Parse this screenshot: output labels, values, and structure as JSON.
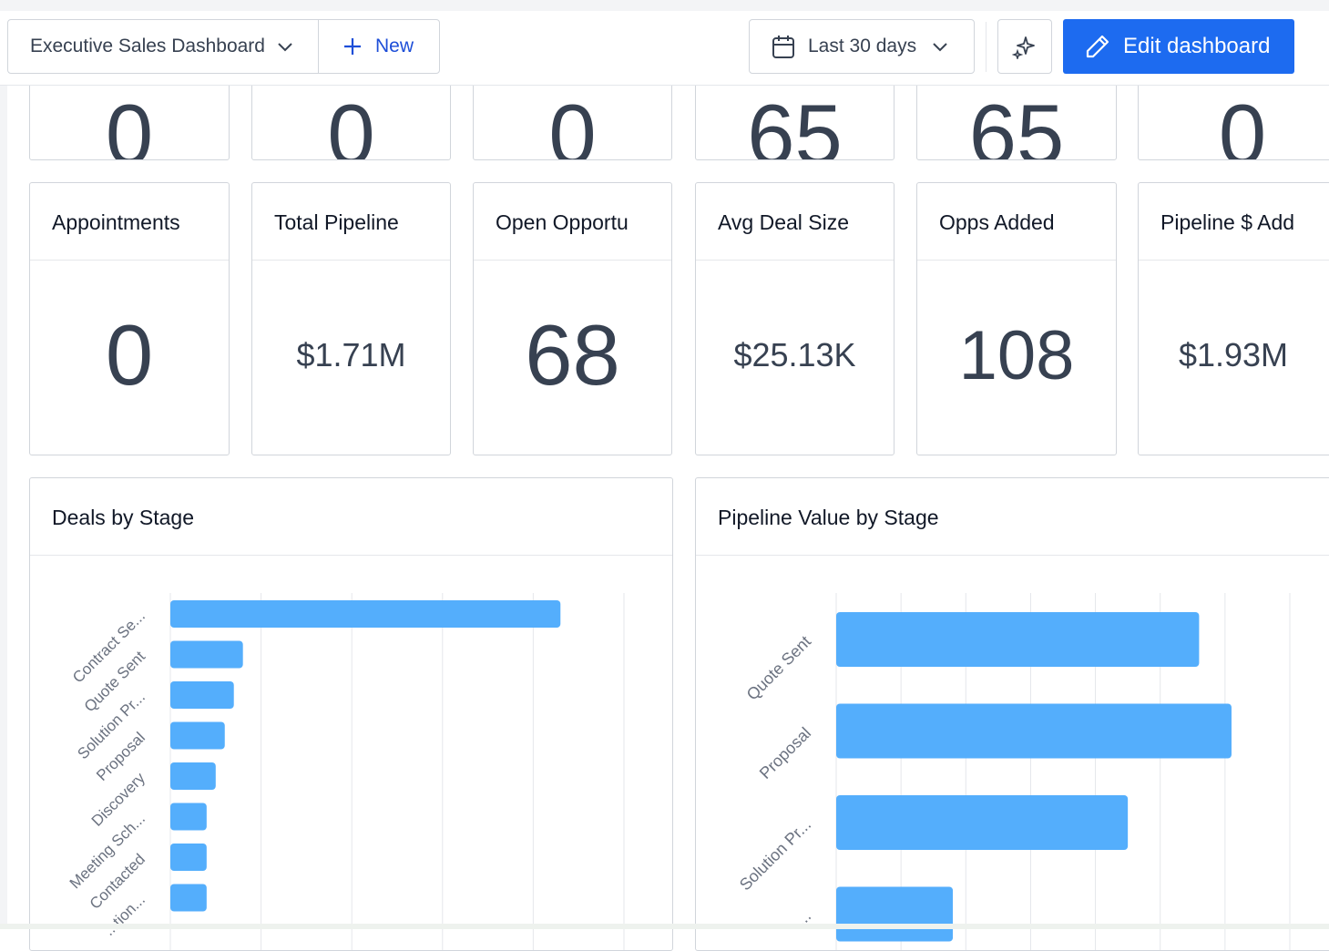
{
  "header": {
    "dashboard_name": "Executive Sales Dashboard",
    "new_label": "New",
    "date_range": "Last 30 days",
    "edit_label": "Edit dashboard"
  },
  "top_row_partial_values": [
    "0",
    "0",
    "0",
    "65",
    "65",
    "0"
  ],
  "metrics": [
    {
      "title": "Appointments",
      "value": "0"
    },
    {
      "title": "Total Pipeline",
      "value": "$1.71M"
    },
    {
      "title": "Open Opportu",
      "value": "68"
    },
    {
      "title": "Avg Deal Size",
      "value": "$25.13K"
    },
    {
      "title": "Opps Added",
      "value": "108"
    },
    {
      "title": "Pipeline $ Add",
      "value": "$1.93M"
    }
  ],
  "colors": {
    "primary": "#1d6bf0",
    "bar": "#54aefc",
    "text": "#374151",
    "border": "#d1d5db"
  },
  "chart_data": [
    {
      "type": "bar",
      "orientation": "horizontal",
      "title": "Deals by Stage",
      "categories": [
        "Contract Se...",
        "Quote Sent",
        "Solution Pr...",
        "Proposal",
        "Discovery",
        "Meeting Sch...",
        "Contacted",
        "...tion..."
      ],
      "values": [
        43,
        8,
        7,
        6,
        5,
        4,
        4,
        4
      ],
      "xlim": [
        0,
        50
      ],
      "grid": true
    },
    {
      "type": "bar",
      "orientation": "horizontal",
      "title": "Pipeline Value by Stage",
      "categories": [
        "Quote Sent",
        "Proposal",
        "Solution Pr...",
        "..."
      ],
      "values": [
        5.6,
        6.1,
        4.5,
        1.8
      ],
      "xlim": [
        0,
        7
      ],
      "grid": true
    }
  ]
}
